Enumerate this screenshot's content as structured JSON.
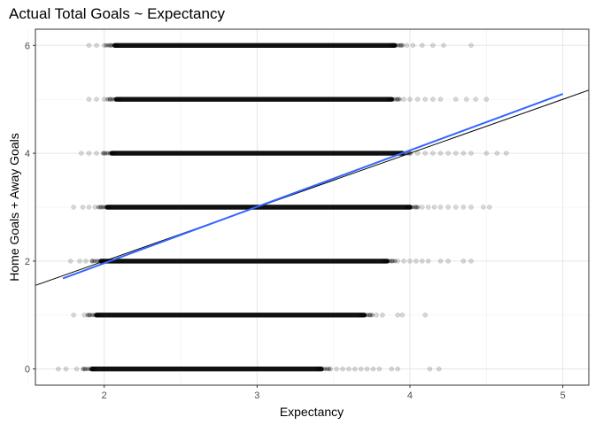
{
  "chart_data": {
    "type": "scatter",
    "title": "Actual Total Goals ~ Expectancy",
    "xlabel": "Expectancy",
    "ylabel": "Home Goals + Away Goals",
    "xlim": [
      1.55,
      5.17
    ],
    "ylim": [
      -0.3,
      6.3
    ],
    "x_ticks": [
      2,
      3,
      4,
      5
    ],
    "y_ticks": [
      0,
      2,
      4,
      6
    ],
    "grid": true,
    "point_color": "#000000",
    "point_opacity": 0.15,
    "series": [
      {
        "y": 0,
        "x_dense": [
          1.92,
          3.42
        ],
        "x_sparse": [
          1.7,
          1.75,
          1.82,
          1.87,
          3.48,
          3.52,
          3.56,
          3.6,
          3.64,
          3.68,
          3.72,
          3.76,
          3.8,
          3.88,
          3.92,
          4.13,
          4.19
        ]
      },
      {
        "y": 1,
        "x_dense": [
          1.95,
          3.7
        ],
        "x_sparse": [
          1.8,
          1.87,
          1.9,
          3.74,
          3.78,
          3.82,
          3.92,
          3.95,
          4.1
        ]
      },
      {
        "y": 2,
        "x_dense": [
          1.98,
          3.85
        ],
        "x_sparse": [
          1.78,
          1.84,
          1.88,
          1.92,
          3.88,
          3.92,
          3.96,
          4.0,
          4.04,
          4.08,
          4.12,
          4.2,
          4.25,
          4.35,
          4.4
        ]
      },
      {
        "y": 3,
        "x_dense": [
          2.02,
          4.0
        ],
        "x_sparse": [
          1.8,
          1.86,
          1.9,
          1.94,
          1.98,
          4.04,
          4.08,
          4.12,
          4.16,
          4.2,
          4.25,
          4.3,
          4.35,
          4.4,
          4.48,
          4.52
        ]
      },
      {
        "y": 4,
        "x_dense": [
          2.05,
          3.95
        ],
        "x_sparse": [
          1.85,
          1.9,
          1.95,
          2.0,
          4.0,
          4.05,
          4.1,
          4.15,
          4.2,
          4.25,
          4.3,
          4.35,
          4.4,
          4.5,
          4.57,
          4.63
        ]
      },
      {
        "y": 5,
        "x_dense": [
          2.08,
          3.88
        ],
        "x_sparse": [
          1.9,
          1.95,
          2.0,
          2.04,
          3.92,
          3.96,
          4.0,
          4.05,
          4.1,
          4.15,
          4.2,
          4.3,
          4.37,
          4.43,
          4.5
        ]
      },
      {
        "y": 6,
        "x_dense": [
          2.07,
          3.9
        ],
        "x_sparse": [
          1.9,
          1.95,
          2.0,
          2.04,
          3.94,
          3.98,
          4.02,
          4.08,
          4.15,
          4.22,
          4.4
        ]
      }
    ],
    "reference_line": {
      "slope": 1,
      "intercept": 0,
      "color": "#000000"
    },
    "fit_line": {
      "x": [
        1.73,
        5.0
      ],
      "y": [
        1.68,
        5.1
      ],
      "color": "#3366ff"
    }
  }
}
